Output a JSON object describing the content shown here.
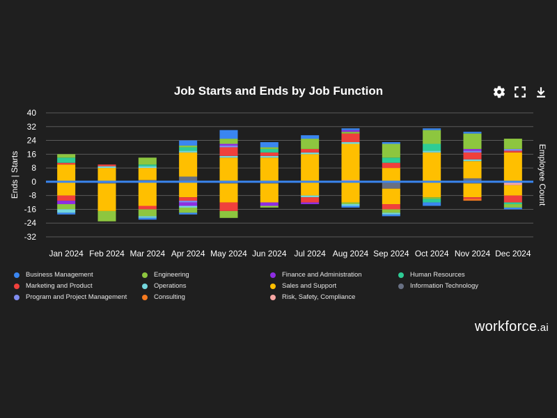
{
  "title": "Job Starts and Ends by Job Function",
  "brand": {
    "name": "workforce",
    "suffix": ".ai"
  },
  "toolbar": {
    "icons": [
      "gear-icon",
      "expand-icon",
      "download-icon"
    ]
  },
  "colors": {
    "Business Management": "#3a86f0",
    "Engineering": "#8dc63f",
    "Finance and Administration": "#8e2de2",
    "Human Resources": "#2ecc95",
    "Marketing and Product": "#f0403c",
    "Operations": "#74d7dd",
    "Sales and Support": "#ffbf00",
    "Information Technology": "#687083",
    "Program and Project Management": "#7f8cf0",
    "Consulting": "#f57a1f",
    "Risk, Safety, Compliance": "#f7a6a3"
  },
  "legend": [
    "Business Management",
    "Engineering",
    "Finance and Administration",
    "Human Resources",
    "Marketing and Product",
    "Operations",
    "Sales and Support",
    "Information Technology",
    "Program and Project Management",
    "Consulting",
    "Risk, Safety, Compliance"
  ],
  "chart_data": {
    "type": "bar",
    "stacked": true,
    "title": "Job Starts and Ends by Job Function",
    "ylabel": "Ends | Starts",
    "y2label": "Employee Count",
    "ylim": [
      -32,
      40
    ],
    "yticks": [
      40,
      32,
      24,
      16,
      8,
      0,
      -8,
      -16,
      -24,
      -32
    ],
    "categories": [
      "Jan 2024",
      "Feb 2024",
      "Mar 2024",
      "Apr 2024",
      "May 2024",
      "Jun 2024",
      "Jul 2024",
      "Aug 2024",
      "Sep 2024",
      "Oct 2024",
      "Nov 2024",
      "Dec 2024"
    ],
    "zero_line_color": "#3a86f0",
    "starts": [
      [
        [
          "Sales and Support",
          10
        ],
        [
          "Marketing and Product",
          1
        ],
        [
          "Human Resources",
          3
        ],
        [
          "Engineering",
          2
        ]
      ],
      [
        [
          "Sales and Support",
          8
        ],
        [
          "Operations",
          1
        ],
        [
          "Marketing and Product",
          1
        ]
      ],
      [
        [
          "Information Technology",
          1
        ],
        [
          "Sales and Support",
          7
        ],
        [
          "Operations",
          1
        ],
        [
          "Human Resources",
          1
        ],
        [
          "Engineering",
          4
        ]
      ],
      [
        [
          "Information Technology",
          3
        ],
        [
          "Sales and Support",
          14
        ],
        [
          "Operations",
          1
        ],
        [
          "Human Resources",
          2
        ],
        [
          "Engineering",
          1
        ],
        [
          "Business Management",
          3
        ]
      ],
      [
        [
          "Sales and Support",
          14
        ],
        [
          "Operations",
          1
        ],
        [
          "Marketing and Product",
          5
        ],
        [
          "Program and Project Management",
          1
        ],
        [
          "Finance and Administration",
          1
        ],
        [
          "Engineering",
          3
        ],
        [
          "Business Management",
          5
        ]
      ],
      [
        [
          "Sales and Support",
          14
        ],
        [
          "Operations",
          1
        ],
        [
          "Marketing and Product",
          2
        ],
        [
          "Human Resources",
          2
        ],
        [
          "Engineering",
          1
        ],
        [
          "Business Management",
          3
        ]
      ],
      [
        [
          "Sales and Support",
          16
        ],
        [
          "Operations",
          1
        ],
        [
          "Marketing and Product",
          2
        ],
        [
          "Engineering",
          6
        ],
        [
          "Business Management",
          2
        ]
      ],
      [
        [
          "Risk, Safety, Compliance",
          1
        ],
        [
          "Sales and Support",
          21
        ],
        [
          "Operations",
          1
        ],
        [
          "Marketing and Product",
          5
        ],
        [
          "Engineering",
          1
        ],
        [
          "Finance and Administration",
          1
        ],
        [
          "Business Management",
          1
        ]
      ],
      [
        [
          "Sales and Support",
          8
        ],
        [
          "Marketing and Product",
          3
        ],
        [
          "Human Resources",
          3
        ],
        [
          "Engineering",
          8
        ],
        [
          "Business Management",
          1
        ]
      ],
      [
        [
          "Sales and Support",
          17
        ],
        [
          "Operations",
          1
        ],
        [
          "Human Resources",
          4
        ],
        [
          "Engineering",
          8
        ],
        [
          "Business Management",
          1
        ]
      ],
      [
        [
          "Information Technology",
          2
        ],
        [
          "Sales and Support",
          10
        ],
        [
          "Operations",
          1
        ],
        [
          "Marketing and Product",
          4
        ],
        [
          "Program and Project Management",
          1
        ],
        [
          "Finance and Administration",
          1
        ],
        [
          "Engineering",
          9
        ],
        [
          "Business Management",
          1
        ]
      ],
      [
        [
          "Sales and Support",
          17
        ],
        [
          "Marketing and Product",
          1
        ],
        [
          "Program and Project Management",
          1
        ],
        [
          "Engineering",
          6
        ]
      ]
    ],
    "ends": [
      [
        [
          "Sales and Support",
          8
        ],
        [
          "Marketing and Product",
          3
        ],
        [
          "Finance and Administration",
          2
        ],
        [
          "Engineering",
          3
        ],
        [
          "Operations",
          2
        ],
        [
          "Business Management",
          1
        ]
      ],
      [
        [
          "Information Technology",
          1
        ],
        [
          "Sales and Support",
          16
        ],
        [
          "Engineering",
          6
        ]
      ],
      [
        [
          "Sales and Support",
          14
        ],
        [
          "Marketing and Product",
          2
        ],
        [
          "Engineering",
          4
        ],
        [
          "Operations",
          1
        ],
        [
          "Business Management",
          1
        ]
      ],
      [
        [
          "Sales and Support",
          9
        ],
        [
          "Marketing and Product",
          2
        ],
        [
          "Program and Project Management",
          1
        ],
        [
          "Finance and Administration",
          2
        ],
        [
          "Operations",
          1
        ],
        [
          "Engineering",
          3
        ],
        [
          "Business Management",
          1
        ]
      ],
      [
        [
          "Information Technology",
          1
        ],
        [
          "Sales and Support",
          11
        ],
        [
          "Marketing and Product",
          5
        ],
        [
          "Engineering",
          4
        ]
      ],
      [
        [
          "Information Technology",
          1
        ],
        [
          "Sales and Support",
          11
        ],
        [
          "Finance and Administration",
          2
        ],
        [
          "Engineering",
          1
        ]
      ],
      [
        [
          "Sales and Support",
          8
        ],
        [
          "Operations",
          1
        ],
        [
          "Marketing and Product",
          3
        ],
        [
          "Finance and Administration",
          1
        ]
      ],
      [
        [
          "Sales and Support",
          12
        ],
        [
          "Engineering",
          1
        ],
        [
          "Operations",
          1
        ],
        [
          "Business Management",
          1
        ]
      ],
      [
        [
          "Information Technology",
          4
        ],
        [
          "Sales and Support",
          9
        ],
        [
          "Marketing and Product",
          3
        ],
        [
          "Engineering",
          2
        ],
        [
          "Operations",
          1
        ],
        [
          "Business Management",
          1
        ]
      ],
      [
        [
          "Sales and Support",
          9
        ],
        [
          "Engineering",
          1
        ],
        [
          "Human Resources",
          2
        ],
        [
          "Business Management",
          2
        ]
      ],
      [
        [
          "Information Technology",
          1
        ],
        [
          "Sales and Support",
          8
        ],
        [
          "Marketing and Product",
          1
        ],
        [
          "Consulting",
          1
        ]
      ],
      [
        [
          "Risk, Safety, Compliance",
          2
        ],
        [
          "Sales and Support",
          6
        ],
        [
          "Marketing and Product",
          4
        ],
        [
          "Human Resources",
          1
        ],
        [
          "Engineering",
          2
        ],
        [
          "Business Management",
          1
        ]
      ]
    ]
  }
}
